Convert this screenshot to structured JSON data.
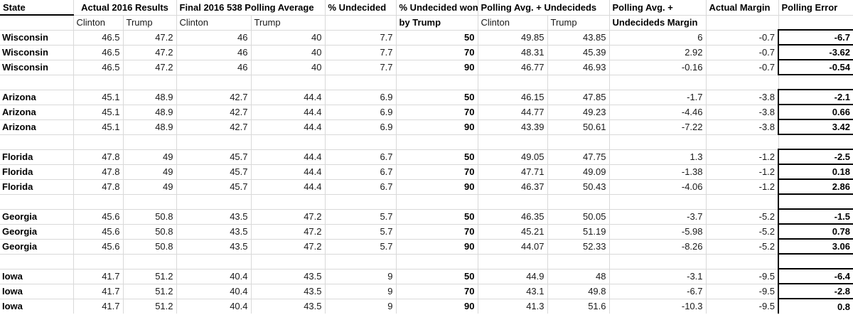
{
  "table": {
    "header": {
      "state": "State",
      "actual_results": "Actual 2016 Results",
      "final_polling": "Final 2016 538 Polling Average",
      "pct_undecided": "% Undecided",
      "undecided_won_line1": "% Undecided won",
      "undecided_won_line2": "by Trump",
      "polling_avg_undecideds": "Polling Avg. + Undecideds",
      "polling_margin_line1": "Polling Avg. +",
      "polling_margin_line2": "Undecideds Margin",
      "actual_margin": "Actual Margin",
      "polling_error": "Polling Error",
      "clinton": "Clinton",
      "trump": "Trump"
    },
    "rows": [
      {
        "type": "data",
        "cells": [
          "Wisconsin",
          "46.5",
          "47.2",
          "46",
          "40",
          "7.7",
          "50",
          "49.85",
          "43.85",
          "6",
          "-0.7",
          "-6.7"
        ]
      },
      {
        "type": "data",
        "cells": [
          "Wisconsin",
          "46.5",
          "47.2",
          "46",
          "40",
          "7.7",
          "70",
          "48.31",
          "45.39",
          "2.92",
          "-0.7",
          "-3.62"
        ]
      },
      {
        "type": "data",
        "cells": [
          "Wisconsin",
          "46.5",
          "47.2",
          "46",
          "40",
          "7.7",
          "90",
          "46.77",
          "46.93",
          "-0.16",
          "-0.7",
          "-0.54"
        ]
      },
      {
        "type": "blank",
        "error_boxed": false
      },
      {
        "type": "data",
        "cells": [
          "Arizona",
          "45.1",
          "48.9",
          "42.7",
          "44.4",
          "6.9",
          "50",
          "46.15",
          "47.85",
          "-1.7",
          "-3.8",
          "-2.1"
        ]
      },
      {
        "type": "data",
        "cells": [
          "Arizona",
          "45.1",
          "48.9",
          "42.7",
          "44.4",
          "6.9",
          "70",
          "44.77",
          "49.23",
          "-4.46",
          "-3.8",
          "0.66"
        ]
      },
      {
        "type": "data",
        "cells": [
          "Arizona",
          "45.1",
          "48.9",
          "42.7",
          "44.4",
          "6.9",
          "90",
          "43.39",
          "50.61",
          "-7.22",
          "-3.8",
          "3.42"
        ]
      },
      {
        "type": "blank",
        "error_boxed": false
      },
      {
        "type": "data",
        "cells": [
          "Florida",
          "47.8",
          "49",
          "45.7",
          "44.4",
          "6.7",
          "50",
          "49.05",
          "47.75",
          "1.3",
          "-1.2",
          "-2.5"
        ]
      },
      {
        "type": "data",
        "cells": [
          "Florida",
          "47.8",
          "49",
          "45.7",
          "44.4",
          "6.7",
          "70",
          "47.71",
          "49.09",
          "-1.38",
          "-1.2",
          "0.18"
        ]
      },
      {
        "type": "data",
        "cells": [
          "Florida",
          "47.8",
          "49",
          "45.7",
          "44.4",
          "6.7",
          "90",
          "46.37",
          "50.43",
          "-4.06",
          "-1.2",
          "2.86"
        ]
      },
      {
        "type": "blank",
        "error_boxed": true
      },
      {
        "type": "data",
        "cells": [
          "Georgia",
          "45.6",
          "50.8",
          "43.5",
          "47.2",
          "5.7",
          "50",
          "46.35",
          "50.05",
          "-3.7",
          "-5.2",
          "-1.5"
        ]
      },
      {
        "type": "data",
        "cells": [
          "Georgia",
          "45.6",
          "50.8",
          "43.5",
          "47.2",
          "5.7",
          "70",
          "45.21",
          "51.19",
          "-5.98",
          "-5.2",
          "0.78"
        ]
      },
      {
        "type": "data",
        "cells": [
          "Georgia",
          "45.6",
          "50.8",
          "43.5",
          "47.2",
          "5.7",
          "90",
          "44.07",
          "52.33",
          "-8.26",
          "-5.2",
          "3.06"
        ]
      },
      {
        "type": "blank",
        "error_boxed": true
      },
      {
        "type": "data",
        "cells": [
          "Iowa",
          "41.7",
          "51.2",
          "40.4",
          "43.5",
          "9",
          "50",
          "44.9",
          "48",
          "-3.1",
          "-9.5",
          "-6.4"
        ]
      },
      {
        "type": "data",
        "cells": [
          "Iowa",
          "41.7",
          "51.2",
          "40.4",
          "43.5",
          "9",
          "70",
          "43.1",
          "49.8",
          "-6.7",
          "-9.5",
          "-2.8"
        ]
      },
      {
        "type": "data",
        "cells": [
          "Iowa",
          "41.7",
          "51.2",
          "40.4",
          "43.5",
          "9",
          "90",
          "41.3",
          "51.6",
          "-10.3",
          "-9.5",
          "0.8"
        ]
      }
    ]
  }
}
